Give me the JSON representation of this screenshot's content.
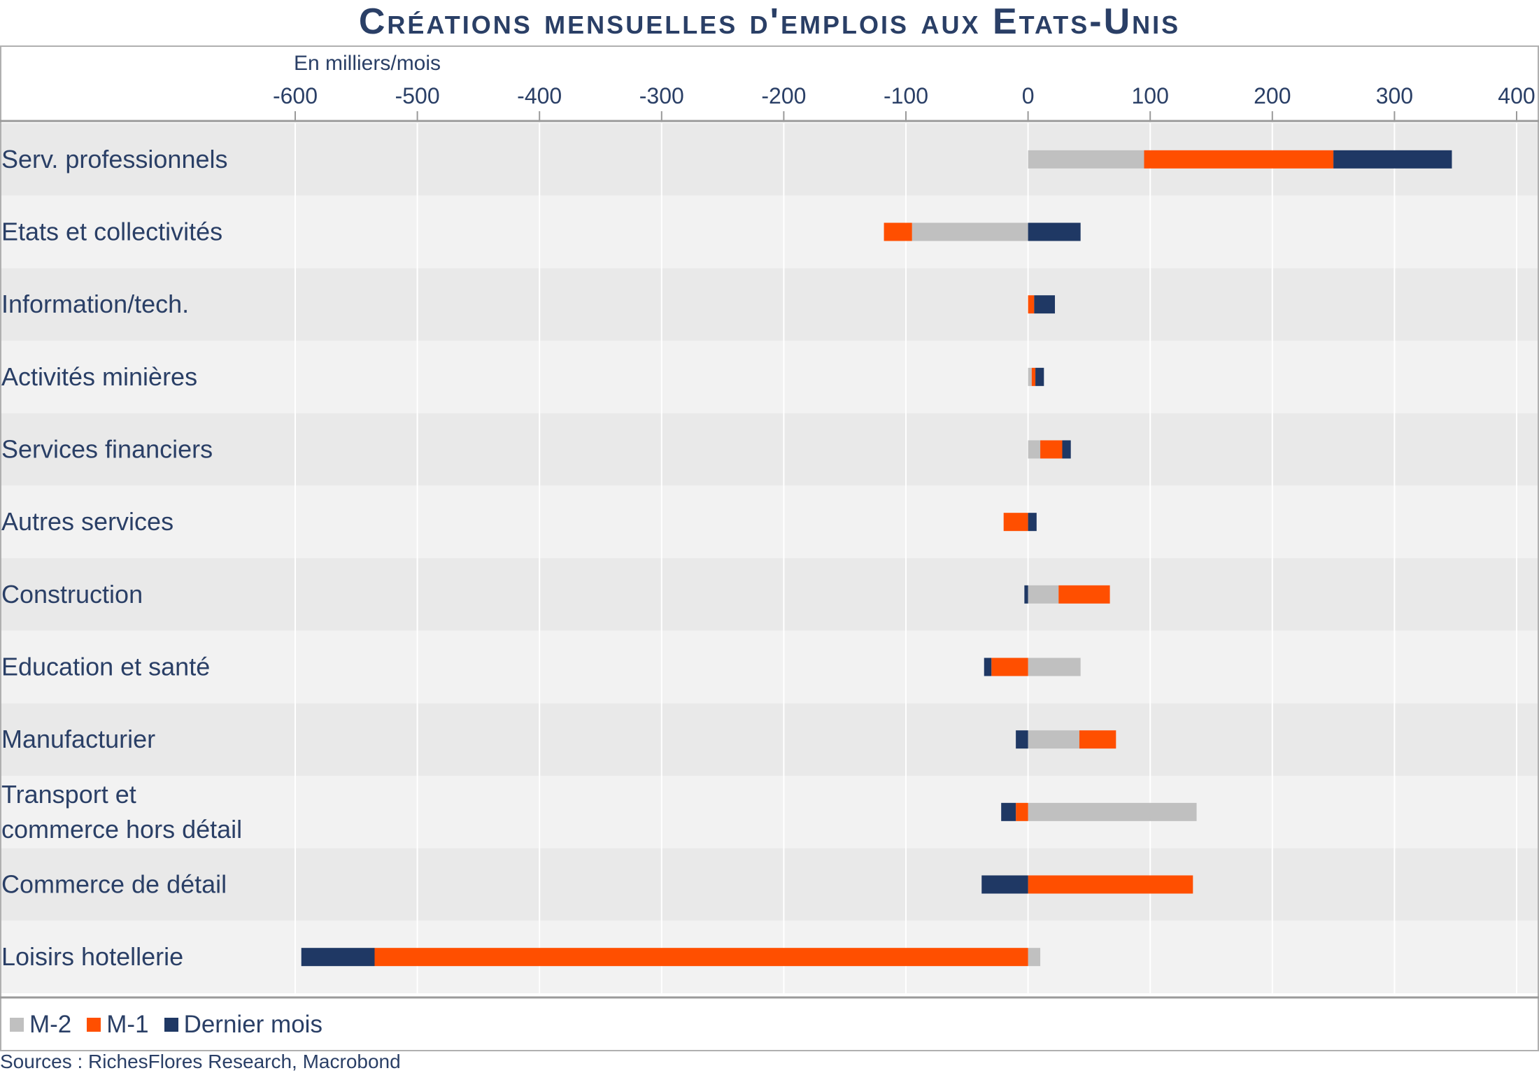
{
  "chart_data": {
    "type": "bar",
    "orientation": "horizontal",
    "stacked": true,
    "title": "Créations mensuelles d'emplois aux Etats-Unis",
    "unit_label": "En milliers/mois",
    "xlim": [
      -600,
      400
    ],
    "xticks": [
      -600,
      -500,
      -400,
      -300,
      -200,
      -100,
      0,
      100,
      200,
      300,
      400
    ],
    "grid": true,
    "legend_position": "bottom-left",
    "categories": [
      [
        "Serv. professionnels"
      ],
      [
        "Etats et collectivités"
      ],
      [
        "Information/tech."
      ],
      [
        "Activités minières"
      ],
      [
        "Services financiers"
      ],
      [
        "Autres services"
      ],
      [
        "Construction"
      ],
      [
        "Education et santé"
      ],
      [
        "Manufacturier"
      ],
      [
        "Transport et",
        "commerce hors détail"
      ],
      [
        "Commerce de détail"
      ],
      [
        "Loisirs hotellerie"
      ]
    ],
    "series": [
      {
        "name": "M-2",
        "color": "#c0c0c0",
        "values": [
          95,
          -95,
          0,
          3,
          10,
          0,
          25,
          43,
          42,
          138,
          0,
          10
        ]
      },
      {
        "name": "M-1",
        "color": "#ff4f00",
        "values": [
          155,
          -23,
          5,
          3,
          18,
          -20,
          42,
          -30,
          30,
          -10,
          135,
          -535
        ]
      },
      {
        "name": "Dernier mois",
        "color": "#1f3864",
        "values": [
          97,
          43,
          17,
          7,
          7,
          7,
          -3,
          -6,
          -10,
          -12,
          -38,
          -60
        ]
      }
    ],
    "source": "Sources : RichesFlores Research, Macrobond"
  }
}
